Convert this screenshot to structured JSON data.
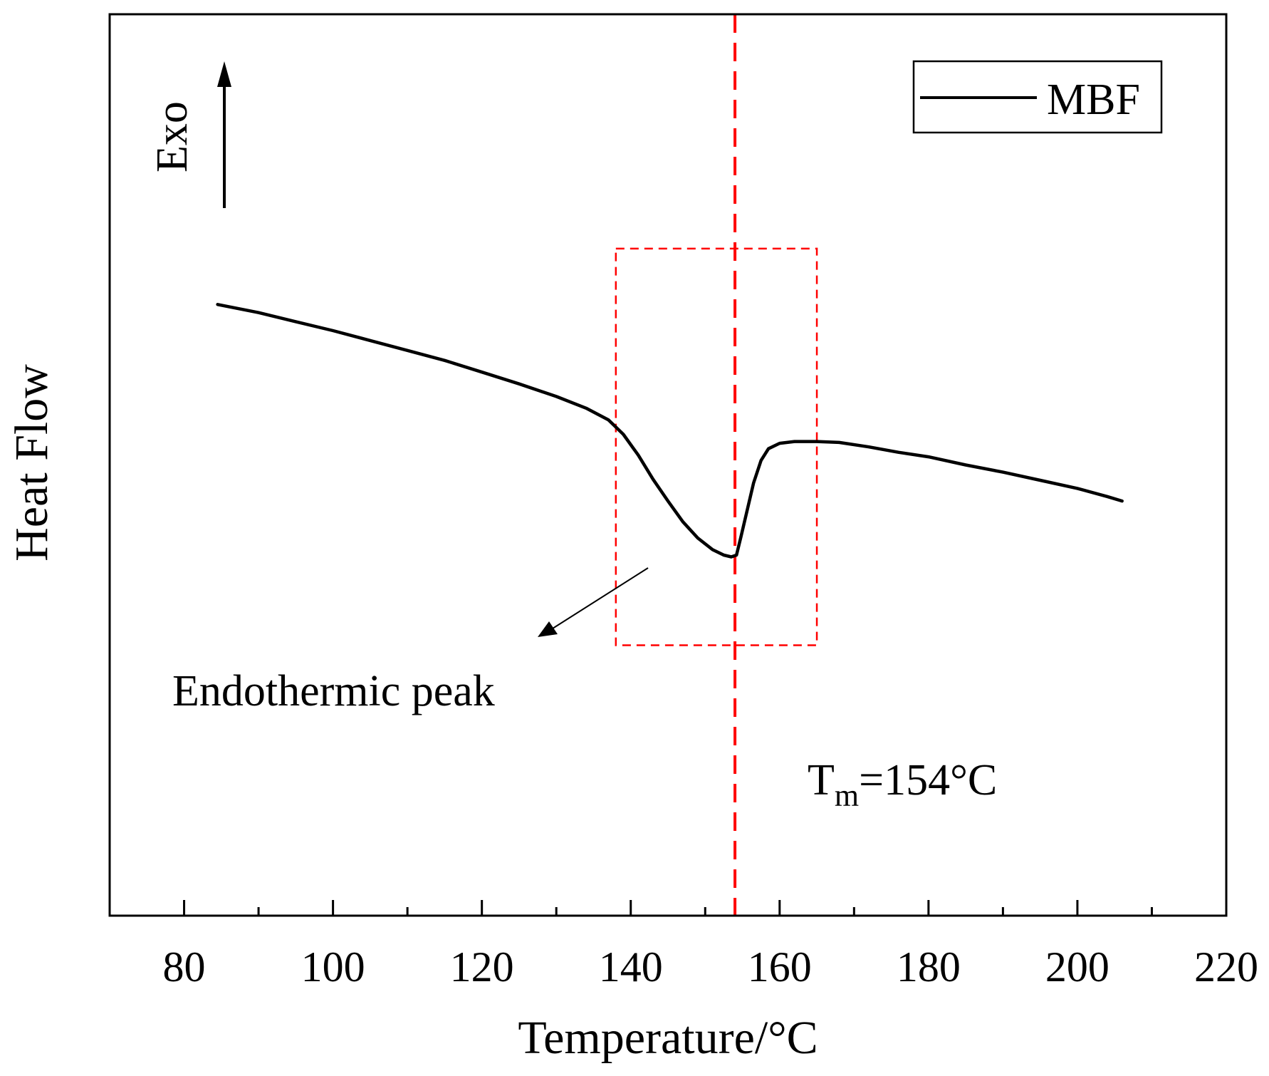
{
  "chart_data": {
    "type": "line",
    "title": "",
    "xlabel": "Temperature/°C",
    "ylabel": "Heat  Flow",
    "xlim": [
      70,
      220
    ],
    "ylim": [
      0,
      100
    ],
    "xticks": [
      80,
      100,
      120,
      140,
      160,
      180,
      200,
      220
    ],
    "minor_xticks": [
      90,
      110,
      130,
      150,
      170,
      190,
      210
    ],
    "yticks_shown": false,
    "grid": false,
    "legend": {
      "position": "top-right",
      "entries": [
        "MBF"
      ]
    },
    "series": [
      {
        "name": "MBF",
        "color": "#000000",
        "x": [
          84.5,
          90,
          95,
          100,
          105,
          110,
          115,
          120,
          125,
          130,
          134,
          137,
          139,
          141,
          143,
          145,
          147,
          149,
          151,
          152.5,
          153.5,
          154.2,
          154.8,
          155.5,
          156.5,
          157.5,
          158.5,
          160,
          162,
          165,
          168,
          172,
          176,
          180,
          185,
          190,
          195,
          200,
          204,
          206
        ],
        "y": [
          67.8,
          66.9,
          65.9,
          64.9,
          63.8,
          62.7,
          61.6,
          60.3,
          59.0,
          57.6,
          56.3,
          55.0,
          53.4,
          51.1,
          48.4,
          46.0,
          43.7,
          41.9,
          40.6,
          40.0,
          39.8,
          40.0,
          42.0,
          44.5,
          48.0,
          50.5,
          51.8,
          52.4,
          52.6,
          52.6,
          52.5,
          52.0,
          51.4,
          50.9,
          50.0,
          49.2,
          48.3,
          47.4,
          46.5,
          46.0
        ]
      }
    ],
    "annotations": {
      "exo_label": "Exo",
      "peak_label": "Endothermic peak",
      "tm_label_main": "T",
      "tm_label_sub": "m",
      "tm_label_rest": "=154°C",
      "tm_value": 154,
      "peak_box": {
        "x_from": 138,
        "x_to": 165,
        "y_from": 30,
        "y_to": 74
      }
    },
    "colors": {
      "line": "#000000",
      "marker": "#ff0000"
    }
  }
}
